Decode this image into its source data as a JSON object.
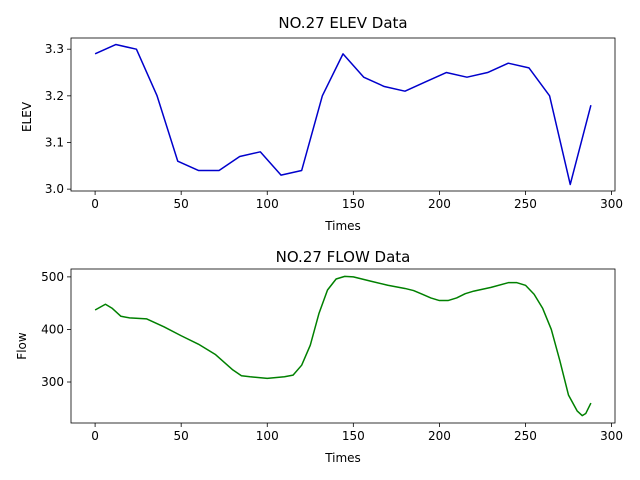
{
  "chart_data": [
    {
      "type": "line",
      "title": "NO.27 ELEV Data",
      "xlabel": "Times",
      "ylabel": "ELEV",
      "xlim": [
        -14,
        302
      ],
      "ylim": [
        2.996,
        3.324
      ],
      "xticks": [
        0,
        50,
        100,
        150,
        200,
        250,
        300
      ],
      "yticks": [
        3.0,
        3.1,
        3.2,
        3.3
      ],
      "ytick_decimals": 1,
      "grid": false,
      "series": [
        {
          "color": "#0000cc",
          "x": [
            0,
            12,
            24,
            36,
            48,
            60,
            72,
            84,
            96,
            108,
            120,
            132,
            144,
            156,
            168,
            180,
            192,
            204,
            216,
            228,
            240,
            252,
            264,
            276,
            288
          ],
          "y": [
            3.29,
            3.31,
            3.3,
            3.2,
            3.06,
            3.04,
            3.04,
            3.07,
            3.08,
            3.03,
            3.04,
            3.2,
            3.29,
            3.24,
            3.22,
            3.21,
            3.23,
            3.25,
            3.24,
            3.25,
            3.27,
            3.26,
            3.2,
            3.01,
            3.18
          ]
        }
      ]
    },
    {
      "type": "line",
      "title": "NO.27 FLOW Data",
      "xlabel": "Times",
      "ylabel": "Flow",
      "xlim": [
        -14,
        302
      ],
      "ylim": [
        222,
        515
      ],
      "xticks": [
        0,
        50,
        100,
        150,
        200,
        250,
        300
      ],
      "yticks": [
        300,
        400,
        500
      ],
      "ytick_decimals": 0,
      "grid": false,
      "series": [
        {
          "color": "#008000",
          "x": [
            0,
            6,
            10,
            15,
            20,
            30,
            40,
            50,
            60,
            70,
            80,
            85,
            90,
            100,
            110,
            115,
            120,
            125,
            130,
            135,
            140,
            145,
            150,
            160,
            170,
            180,
            185,
            190,
            195,
            200,
            205,
            210,
            215,
            220,
            230,
            240,
            245,
            250,
            255,
            260,
            265,
            270,
            275,
            280,
            283,
            285,
            288
          ],
          "y": [
            437,
            448,
            440,
            425,
            422,
            420,
            405,
            388,
            372,
            352,
            323,
            312,
            310,
            307,
            310,
            313,
            332,
            370,
            430,
            475,
            496,
            501,
            500,
            492,
            484,
            478,
            474,
            467,
            460,
            455,
            455,
            460,
            468,
            473,
            480,
            489,
            489,
            484,
            467,
            440,
            400,
            340,
            275,
            245,
            236,
            240,
            260
          ]
        }
      ]
    }
  ]
}
